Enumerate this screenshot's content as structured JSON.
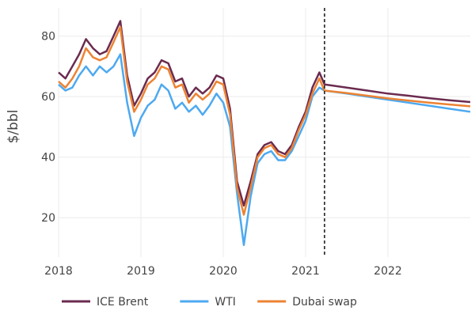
{
  "chart_data": {
    "type": "line",
    "title": "",
    "xlabel": "",
    "ylabel": "$/bbl",
    "xlim": [
      2018,
      2023
    ],
    "ylim": [
      7,
      89.3
    ],
    "x_ticks": [
      "2018",
      "2019",
      "2020",
      "2021",
      "2022"
    ],
    "y_ticks": [
      "20",
      "40",
      "60",
      "80"
    ],
    "grid": true,
    "legend_placement": "bottom",
    "vertical_marker": {
      "x": 2021.23,
      "style": "dashed",
      "color": "#111111"
    },
    "x": [
      2018.0,
      2018.083,
      2018.167,
      2018.25,
      2018.333,
      2018.417,
      2018.5,
      2018.583,
      2018.667,
      2018.75,
      2018.833,
      2018.917,
      2019.0,
      2019.083,
      2019.167,
      2019.25,
      2019.333,
      2019.417,
      2019.5,
      2019.583,
      2019.667,
      2019.75,
      2019.833,
      2019.917,
      2020.0,
      2020.083,
      2020.167,
      2020.25,
      2020.333,
      2020.417,
      2020.5,
      2020.583,
      2020.667,
      2020.75,
      2020.833,
      2020.917,
      2021.0,
      2021.083,
      2021.167,
      2021.23,
      2021.5,
      2021.75,
      2022.0,
      2022.25,
      2022.5,
      2022.75,
      2023.0
    ],
    "series": [
      {
        "name": "ICE Brent",
        "color": "#6b2b4f",
        "values": [
          68,
          66,
          70,
          74,
          79,
          76,
          74,
          75,
          80,
          85,
          67,
          57,
          61,
          66,
          68,
          72,
          71,
          65,
          66,
          60,
          63,
          61,
          63,
          67,
          66,
          56,
          32,
          24,
          32,
          41,
          44,
          45,
          42,
          41,
          44,
          50,
          55,
          63,
          68,
          64,
          63,
          62,
          61,
          60.3,
          59.5,
          58.8,
          58.2
        ]
      },
      {
        "name": "WTI",
        "color": "#4da9f0",
        "values": [
          64,
          62,
          63,
          67,
          70,
          67,
          70,
          68,
          70,
          74,
          58,
          47,
          53,
          57,
          59,
          64,
          62,
          56,
          58,
          55,
          57,
          54,
          57,
          61,
          58,
          50,
          28,
          11,
          27,
          38,
          41,
          42,
          39,
          39,
          42,
          47,
          52,
          60,
          63,
          62,
          61,
          60,
          59,
          58,
          57,
          56,
          55
        ]
      },
      {
        "name": "Dubai swap",
        "color": "#ec8333",
        "values": [
          65,
          63,
          66,
          70,
          76,
          73,
          72,
          73,
          78,
          83,
          65,
          55,
          59,
          64,
          66,
          70,
          69,
          63,
          64,
          58,
          61,
          59,
          61,
          65,
          64,
          54,
          30,
          21,
          30,
          40,
          43,
          44,
          41,
          40,
          43,
          49,
          54,
          61,
          66,
          62,
          61.2,
          60.3,
          59.4,
          58.7,
          58,
          57.4,
          56.8
        ]
      }
    ]
  }
}
